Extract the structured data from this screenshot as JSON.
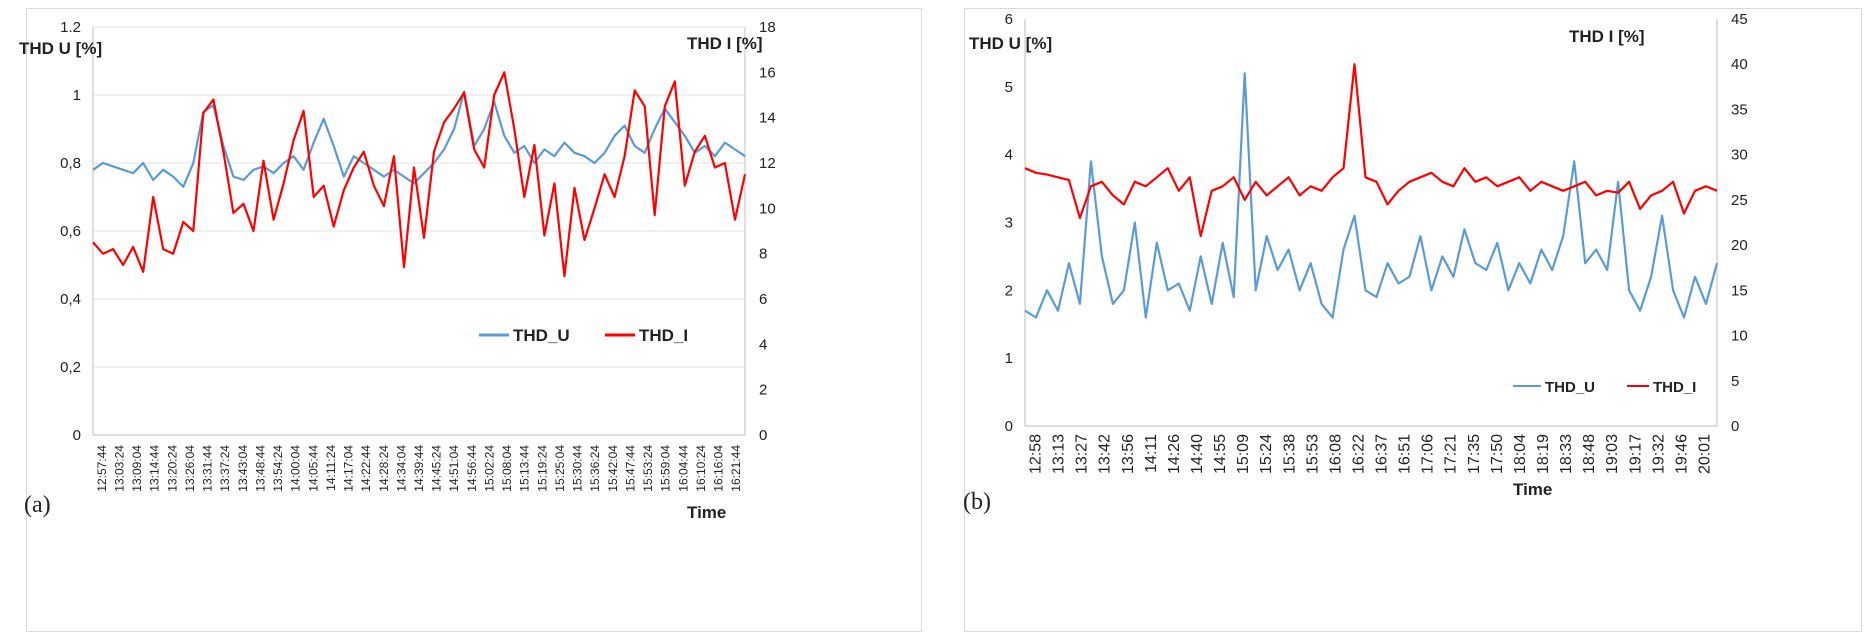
{
  "chart_data": [
    {
      "panel_label": "(a)",
      "type": "line",
      "y_label_left": "THD U [%]",
      "y_label_right": "THD I [%]",
      "x_label": "Time",
      "y_left_range": [
        0,
        1.2
      ],
      "y_right_range": [
        0,
        18
      ],
      "y_left_ticks": [
        "0",
        "0,2",
        "0,4",
        "0,6",
        "0,8",
        "1",
        "1.2"
      ],
      "y_right_ticks": [
        "0",
        "2",
        "4",
        "6",
        "8",
        "10",
        "12",
        "14",
        "16",
        "18"
      ],
      "x_ticks": [
        "12:57:44",
        "13:03:24",
        "13:09:04",
        "13:14:44",
        "13:20:24",
        "13:26:04",
        "13:31:44",
        "13:37:24",
        "13:43:04",
        "13:48:44",
        "13:54:24",
        "14:00:04",
        "14:05:44",
        "14:11:24",
        "14:17:04",
        "14:22:44",
        "14:28:24",
        "14:34:04",
        "14:39:44",
        "14:45:24",
        "14:51:04",
        "14:56:44",
        "15:02:24",
        "15:08:04",
        "15:13:44",
        "15:19:24",
        "15:25:04",
        "15:30:44",
        "15:36:24",
        "15:42:04",
        "15:47:44",
        "15:53:24",
        "15:59:04",
        "16:04:44",
        "16:10:24",
        "16:16:04",
        "16:21:44"
      ],
      "legend": {
        "position": "center-right",
        "entries": [
          "THD_U",
          "THD_I"
        ]
      },
      "series": [
        {
          "name": "THD_U",
          "axis": "left",
          "color": "#5b9bd5",
          "values": [
            0.78,
            0.8,
            0.79,
            0.78,
            0.77,
            0.8,
            0.75,
            0.78,
            0.76,
            0.73,
            0.8,
            0.95,
            0.97,
            0.85,
            0.76,
            0.75,
            0.78,
            0.79,
            0.77,
            0.8,
            0.82,
            0.78,
            0.86,
            0.93,
            0.85,
            0.76,
            0.82,
            0.8,
            0.78,
            0.76,
            0.78,
            0.76,
            0.74,
            0.77,
            0.8,
            0.84,
            0.9,
            1.01,
            0.85,
            0.9,
            0.98,
            0.88,
            0.83,
            0.85,
            0.8,
            0.84,
            0.82,
            0.86,
            0.83,
            0.82,
            0.8,
            0.83,
            0.88,
            0.91,
            0.85,
            0.83,
            0.9,
            0.96,
            0.92,
            0.88,
            0.83,
            0.85,
            0.82,
            0.86,
            0.84,
            0.82
          ]
        },
        {
          "name": "THD_I",
          "axis": "right",
          "color": "#ff0000",
          "values": [
            8.5,
            8.0,
            8.2,
            7.5,
            8.3,
            7.2,
            10.5,
            8.2,
            8.0,
            9.4,
            9.0,
            14.2,
            14.8,
            12.5,
            9.8,
            10.2,
            9.0,
            12.1,
            9.5,
            11.1,
            13.0,
            14.3,
            10.5,
            11.0,
            9.2,
            10.8,
            11.8,
            12.5,
            11.0,
            10.1,
            12.3,
            7.4,
            11.8,
            8.7,
            12.5,
            13.8,
            14.4,
            15.1,
            12.6,
            11.8,
            15.0,
            16.0,
            13.5,
            10.5,
            12.8,
            8.8,
            11.1,
            7.0,
            10.9,
            8.6,
            10.0,
            11.5,
            10.5,
            12.3,
            15.2,
            14.5,
            9.7,
            14.5,
            15.6,
            11.0,
            12.5,
            13.2,
            11.8,
            12.0,
            9.5,
            11.5
          ]
        }
      ]
    },
    {
      "panel_label": "(b)",
      "type": "line",
      "y_label_left": "THD U [%]",
      "y_label_right": "THD I [%]",
      "x_label": "Time",
      "y_left_range": [
        0,
        6
      ],
      "y_right_range": [
        0,
        45
      ],
      "y_left_ticks": [
        "0",
        "1",
        "2",
        "3",
        "4",
        "5",
        "6"
      ],
      "y_right_ticks": [
        "0",
        "5",
        "10",
        "15",
        "20",
        "25",
        "30",
        "35",
        "40",
        "45"
      ],
      "x_ticks": [
        "12:58",
        "13:13",
        "13:27",
        "13:42",
        "13:56",
        "14:11",
        "14:26",
        "14:40",
        "14:55",
        "15:09",
        "15:24",
        "15:38",
        "15:53",
        "16:08",
        "16:22",
        "16:37",
        "16:51",
        "17:06",
        "17:21",
        "17:35",
        "17:50",
        "18:04",
        "18:19",
        "18:33",
        "18:48",
        "19:03",
        "19:17",
        "19:32",
        "19:46",
        "20:01"
      ],
      "legend": {
        "position": "bottom-right",
        "entries": [
          "THD_U",
          "THD_I"
        ]
      },
      "series": [
        {
          "name": "THD_U",
          "axis": "left",
          "color": "#5b9bd5",
          "values": [
            1.7,
            1.6,
            2.0,
            1.7,
            2.4,
            1.8,
            3.9,
            2.5,
            1.8,
            2.0,
            3.0,
            1.6,
            2.7,
            2.0,
            2.1,
            1.7,
            2.5,
            1.8,
            2.7,
            1.9,
            5.2,
            2.0,
            2.8,
            2.3,
            2.6,
            2.0,
            2.4,
            1.8,
            1.6,
            2.6,
            3.1,
            2.0,
            1.9,
            2.4,
            2.1,
            2.2,
            2.8,
            2.0,
            2.5,
            2.2,
            2.9,
            2.4,
            2.3,
            2.7,
            2.0,
            2.4,
            2.1,
            2.6,
            2.3,
            2.8,
            3.9,
            2.4,
            2.6,
            2.3,
            3.6,
            2.0,
            1.7,
            2.2,
            3.1,
            2.0,
            1.6,
            2.2,
            1.8,
            2.4
          ]
        },
        {
          "name": "THD_I",
          "axis": "right",
          "color": "#ff0000",
          "values": [
            28.5,
            28.0,
            27.8,
            27.5,
            27.2,
            23.0,
            26.5,
            27.0,
            25.5,
            24.5,
            27.0,
            26.5,
            27.5,
            28.5,
            26.0,
            27.5,
            21.0,
            26.0,
            26.5,
            27.5,
            25.0,
            27.0,
            25.5,
            26.5,
            27.5,
            25.5,
            26.5,
            26.0,
            27.5,
            28.5,
            40.0,
            27.5,
            27.0,
            24.5,
            26.0,
            27.0,
            27.5,
            28.0,
            27.0,
            26.5,
            28.5,
            27.0,
            27.5,
            26.5,
            27.0,
            27.5,
            26.0,
            27.0,
            26.5,
            26.0,
            26.5,
            27.0,
            25.5,
            26.0,
            25.8,
            27.0,
            24.0,
            25.5,
            26.0,
            27.0,
            23.5,
            26.0,
            26.5,
            26.0
          ]
        }
      ]
    }
  ]
}
